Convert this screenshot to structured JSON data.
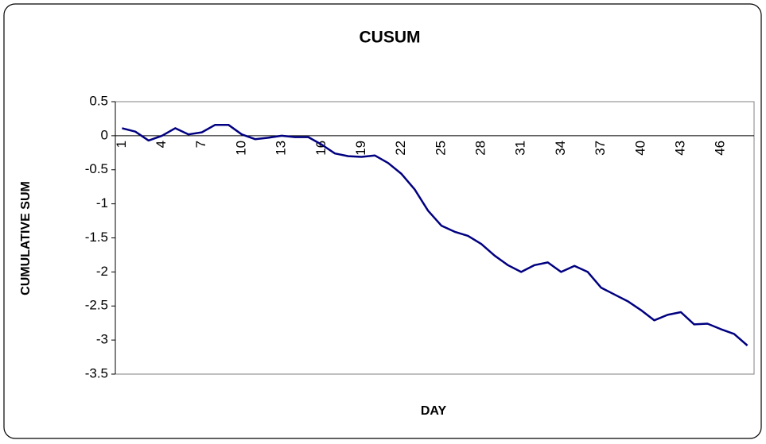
{
  "chart_data": {
    "type": "line",
    "title": "CUSUM",
    "x_label": "DAY",
    "y_label": "CUMULATIVE SUM",
    "categories": [
      1,
      null,
      null,
      4,
      null,
      null,
      7,
      null,
      null,
      10,
      null,
      null,
      13,
      null,
      null,
      16,
      null,
      null,
      19,
      null,
      null,
      22,
      null,
      null,
      25,
      null,
      null,
      28,
      null,
      null,
      31,
      null,
      null,
      34,
      null,
      null,
      37,
      null,
      null,
      40,
      null,
      null,
      43,
      null,
      null,
      46,
      null,
      null
    ],
    "series": [
      {
        "name": "CUSUM",
        "color": "#000080",
        "values": [
          0.11,
          0.06,
          -0.07,
          0.0,
          0.11,
          0.02,
          0.05,
          0.16,
          0.16,
          0.02,
          -0.05,
          -0.03,
          0.0,
          -0.02,
          -0.02,
          -0.13,
          -0.26,
          -0.3,
          -0.31,
          -0.29,
          -0.4,
          -0.56,
          -0.79,
          -1.1,
          -1.32,
          -1.41,
          -1.47,
          -1.59,
          -1.76,
          -1.9,
          -2.0,
          -1.9,
          -1.86,
          -2.0,
          -1.91,
          -2.0,
          -2.23,
          -2.33,
          -2.43,
          -2.56,
          -2.71,
          -2.63,
          -2.59,
          -2.77,
          -2.76,
          -2.84,
          -2.91,
          -3.08
        ]
      }
    ],
    "ylim": [
      -3.5,
      0.5
    ],
    "yticks": [
      0.5,
      0,
      -0.5,
      -1,
      -1.5,
      -2,
      -2.5,
      -3,
      -3.5
    ],
    "grid": false,
    "legend": false
  }
}
